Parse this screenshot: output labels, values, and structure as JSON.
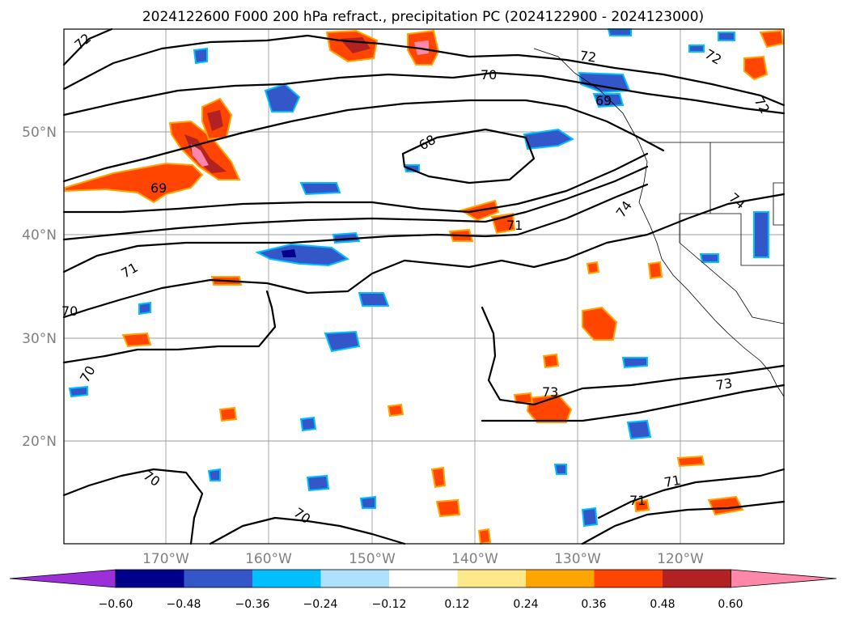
{
  "title": "2024122600 F000 200 hPa refract., precipitation PC (2024122900 - 2024123000)",
  "map": {
    "lat_labels": [
      "50°N",
      "40°N",
      "30°N",
      "20°N"
    ],
    "lon_labels": [
      "170°W",
      "160°W",
      "150°W",
      "140°W",
      "130°W",
      "120°W"
    ],
    "contour_labels": [
      "72",
      "72",
      "70",
      "72",
      "68",
      "69",
      "69",
      "71",
      "71",
      "70",
      "70",
      "73",
      "73",
      "70",
      "70",
      "71",
      "71",
      "74",
      "74",
      "72"
    ]
  },
  "colorbar": {
    "ticks": [
      "−0.60",
      "−0.48",
      "−0.36",
      "−0.24",
      "−0.12",
      "0.12",
      "0.24",
      "0.36",
      "0.48",
      "0.60"
    ],
    "colors": [
      "#9b30d9",
      "#00008b",
      "#3357c9",
      "#00bfff",
      "#aee1fb",
      "#ffffff",
      "#fde88a",
      "#ffa500",
      "#ff4500",
      "#b22222",
      "#ff88aa"
    ]
  }
}
